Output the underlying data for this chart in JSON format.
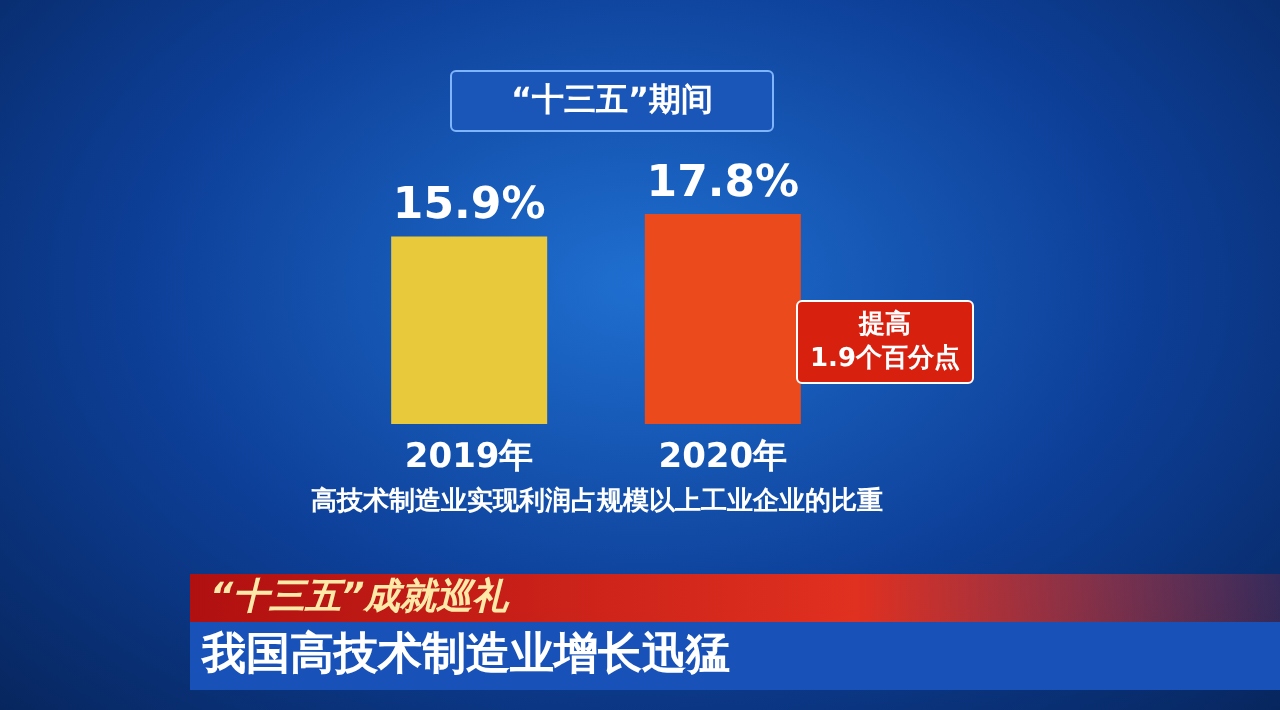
{
  "chart_data": {
    "type": "bar",
    "title": "“十三五”期间",
    "xlabel": "高技术制造业实现利润占规模以上工业企业的比重",
    "categories": [
      "2019年",
      "2020年"
    ],
    "values": [
      15.9,
      17.8
    ],
    "colors": [
      "#e9c93c",
      "#ea4a1c"
    ],
    "value_labels": [
      "15.9%",
      "17.8%"
    ],
    "annotations": [
      "提高\n1.9个百分点",
      "“十三五”成就巡礼",
      "我国高技术制造业增长迅猛"
    ]
  }
}
